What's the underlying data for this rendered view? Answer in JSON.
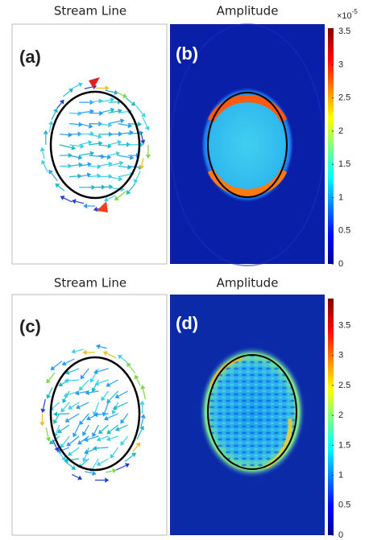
{
  "panels": [
    {
      "title": "Stream Line",
      "label": "(a)"
    },
    {
      "title": "Amplitude",
      "label": "(b)",
      "colorbar": {
        "exponent": "×10",
        "exponent_power": "-5",
        "clim": [
          0,
          3.55
        ],
        "ticks": [
          0,
          0.5,
          1,
          1.5,
          2,
          2.5,
          3,
          3.5
        ]
      }
    },
    {
      "title": "Stream Line",
      "label": "(c)"
    },
    {
      "title": "Amplitude",
      "label": "(d)",
      "colorbar": {
        "clim": [
          0,
          3.95
        ],
        "ticks": [
          0,
          0.5,
          1,
          1.5,
          2,
          2.5,
          3,
          3.5
        ]
      }
    }
  ]
}
